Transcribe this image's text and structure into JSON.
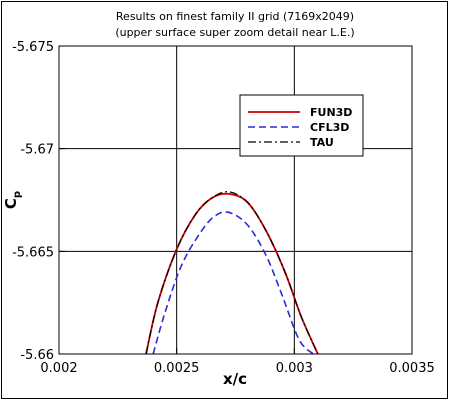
{
  "chart_data": {
    "type": "line",
    "title_line1": "Results on finest family II grid (7169x2049)",
    "title_line2": "(upper surface super zoom detail near L.E.)",
    "xlabel": "x/c",
    "ylabel_main": "C",
    "ylabel_sub": "p",
    "xlim": [
      0.002,
      0.0035
    ],
    "ylim": [
      -5.675,
      -5.66
    ],
    "y_inverted": true,
    "grid": true,
    "legend_position": "upper-right",
    "x_ticks": [
      {
        "value": 0.002,
        "label": "0.002"
      },
      {
        "value": 0.0025,
        "label": "0.0025"
      },
      {
        "value": 0.003,
        "label": "0.003"
      },
      {
        "value": 0.0035,
        "label": "0.0035"
      }
    ],
    "y_ticks": [
      {
        "value": -5.675,
        "label": "-5.675"
      },
      {
        "value": -5.67,
        "label": "-5.67"
      },
      {
        "value": -5.665,
        "label": "-5.665"
      },
      {
        "value": -5.66,
        "label": "-5.66"
      }
    ],
    "series": [
      {
        "name": "FUN3D",
        "color": "#cc0000",
        "dash": "solid",
        "x": [
          0.00237,
          0.00242,
          0.0025,
          0.00258,
          0.00265,
          0.00272,
          0.0028,
          0.00288,
          0.00296,
          0.00303,
          0.0031
        ],
        "y": [
          -5.66,
          -5.6625,
          -5.6651,
          -5.6668,
          -5.6676,
          -5.6678,
          -5.6674,
          -5.666,
          -5.664,
          -5.6618,
          -5.66
        ]
      },
      {
        "name": "CFL3D",
        "color": "#2b2bd6",
        "dash": "dashed",
        "x": [
          0.0024,
          0.00245,
          0.00252,
          0.0026,
          0.00266,
          0.00272,
          0.0028,
          0.00288,
          0.00295,
          0.00302,
          0.00308
        ],
        "y": [
          -5.66,
          -5.662,
          -5.6643,
          -5.6659,
          -5.6667,
          -5.6669,
          -5.6663,
          -5.6648,
          -5.6628,
          -5.6607,
          -5.66
        ]
      },
      {
        "name": "TAU",
        "color": "#000000",
        "dash": "dashdot",
        "x": [
          0.00237,
          0.00242,
          0.0025,
          0.00258,
          0.00265,
          0.00272,
          0.0028,
          0.00288,
          0.00296,
          0.00303,
          0.0031
        ],
        "y": [
          -5.66,
          -5.6625,
          -5.6651,
          -5.6668,
          -5.6676,
          -5.6679,
          -5.6674,
          -5.666,
          -5.664,
          -5.6618,
          -5.66
        ]
      }
    ]
  }
}
